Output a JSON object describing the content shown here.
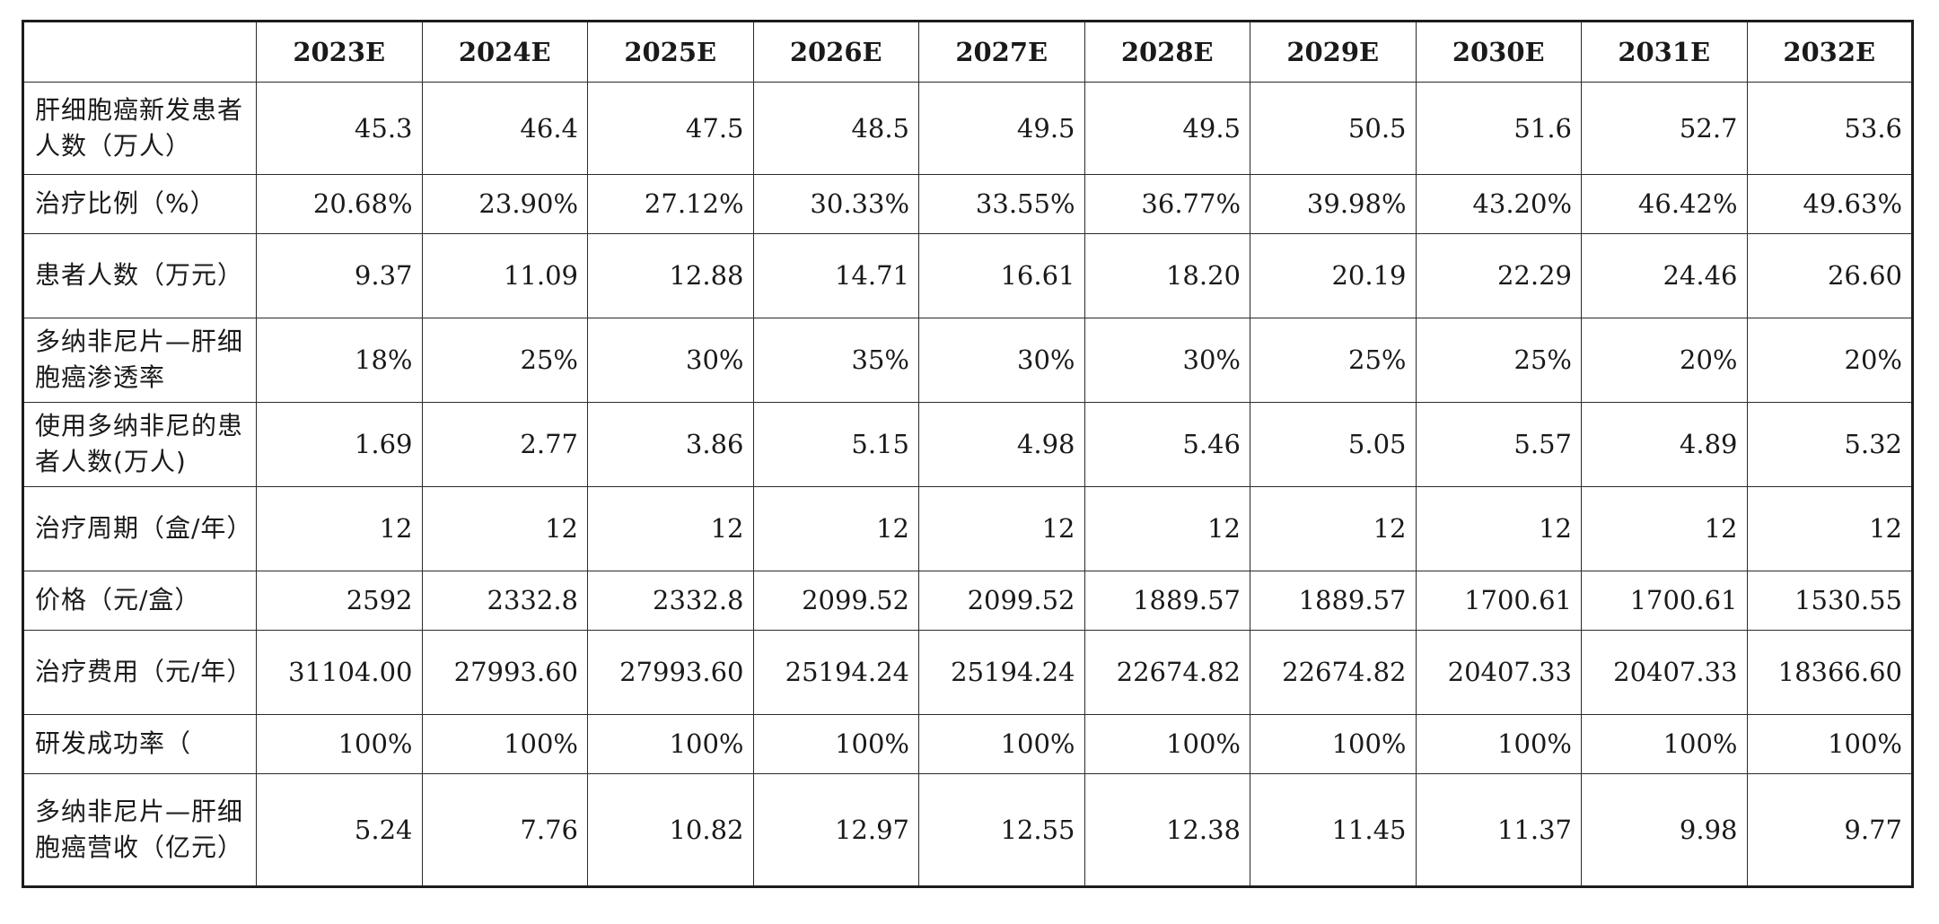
{
  "table": {
    "years": [
      "2023E",
      "2024E",
      "2025E",
      "2026E",
      "2027E",
      "2028E",
      "2029E",
      "2030E",
      "2031E",
      "2032E"
    ],
    "rows": [
      {
        "name": "new-patients",
        "label": "肝细胞癌新发患者人数（万人）",
        "values": [
          "45.3",
          "46.4",
          "47.5",
          "48.5",
          "49.5",
          "49.5",
          "50.5",
          "51.6",
          "52.7",
          "53.6"
        ]
      },
      {
        "name": "treatment-ratio",
        "label": "治疗比例（%）",
        "values": [
          "20.68%",
          "23.90%",
          "27.12%",
          "30.33%",
          "33.55%",
          "36.77%",
          "39.98%",
          "43.20%",
          "46.42%",
          "49.63%"
        ]
      },
      {
        "name": "patient-count",
        "label": "患者人数（万元）",
        "values": [
          "9.37",
          "11.09",
          "12.88",
          "14.71",
          "16.61",
          "18.20",
          "20.19",
          "22.29",
          "24.46",
          "26.60"
        ]
      },
      {
        "name": "penetration-rate",
        "label": "多纳非尼片—肝细胞癌渗透率",
        "values": [
          "18%",
          "25%",
          "30%",
          "35%",
          "30%",
          "30%",
          "25%",
          "25%",
          "20%",
          "20%"
        ]
      },
      {
        "name": "donafenib-patients",
        "label": "使用多纳非尼的患者人数(万人)",
        "values": [
          "1.69",
          "2.77",
          "3.86",
          "5.15",
          "4.98",
          "5.46",
          "5.05",
          "5.57",
          "4.89",
          "5.32"
        ]
      },
      {
        "name": "treatment-cycle",
        "label": "治疗周期（盒/年）",
        "values": [
          "12",
          "12",
          "12",
          "12",
          "12",
          "12",
          "12",
          "12",
          "12",
          "12"
        ]
      },
      {
        "name": "price",
        "label": "价格（元/盒）",
        "values": [
          "2592",
          "2332.8",
          "2332.8",
          "2099.52",
          "2099.52",
          "1889.57",
          "1889.57",
          "1700.61",
          "1700.61",
          "1530.55"
        ]
      },
      {
        "name": "treatment-cost",
        "label": "治疗费用（元/年）",
        "values": [
          "31104.00",
          "27993.60",
          "27993.60",
          "25194.24",
          "25194.24",
          "22674.82",
          "22674.82",
          "20407.33",
          "20407.33",
          "18366.60"
        ]
      },
      {
        "name": "rd-success-rate",
        "label": "研发成功率（",
        "values": [
          "100%",
          "100%",
          "100%",
          "100%",
          "100%",
          "100%",
          "100%",
          "100%",
          "100%",
          "100%"
        ]
      },
      {
        "name": "revenue",
        "label": "多纳非尼片—肝细胞癌营收（亿元）",
        "values": [
          "5.24",
          "7.76",
          "10.82",
          "12.97",
          "12.55",
          "12.38",
          "11.45",
          "11.37",
          "9.98",
          "9.77"
        ]
      }
    ]
  }
}
